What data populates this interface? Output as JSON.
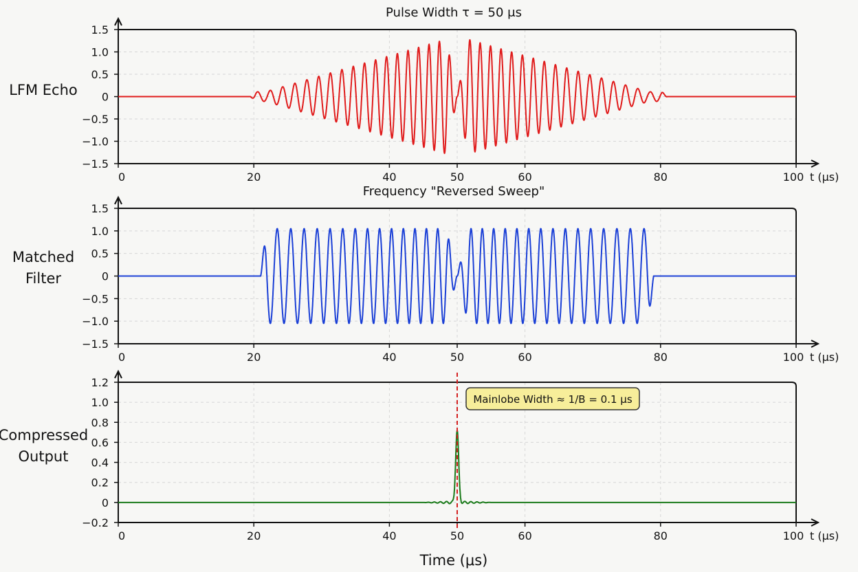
{
  "chart_data": [
    {
      "type": "line",
      "title": "Pulse Width τ = 50 μs",
      "ylabel": "LFM Echo",
      "xlabel_end": "t (μs)",
      "xlim": [
        0,
        100
      ],
      "ylim": [
        -1.5,
        1.5
      ],
      "yticks": [
        "1.5",
        "1.0",
        "0.5",
        "0",
        "-0.5",
        "-1.0",
        "-1.5"
      ],
      "xticks": [
        "0",
        "20",
        "40",
        "50",
        "60",
        "80",
        "100"
      ],
      "color": "#e01b1b",
      "signal": {
        "start": 19.5,
        "end": 81,
        "center": 50,
        "peak_amplitude": 1.35,
        "envelope": "triangular"
      }
    },
    {
      "type": "line",
      "title": "Frequency \"Reversed Sweep\"",
      "ylabel": [
        "Matched",
        "Filter"
      ],
      "xlabel_end": "t (μs)",
      "xlim": [
        0,
        100
      ],
      "ylim": [
        -1.5,
        1.5
      ],
      "yticks": [
        "1.5",
        "1.0",
        "0.5",
        "0",
        "-0.5",
        "-1.0",
        "-1.5"
      ],
      "xticks": [
        "0",
        "20",
        "40",
        "50",
        "60",
        "80",
        "100"
      ],
      "color": "#1a3fd6",
      "signal": {
        "start": 21,
        "end": 79,
        "center": 50,
        "peak_amplitude": 1.05,
        "envelope": "flat"
      }
    },
    {
      "type": "line",
      "ylabel": [
        "Compressed",
        "Output"
      ],
      "xlabel": "Time (μs)",
      "xlabel_end": "t (μs)",
      "xlim": [
        0,
        100
      ],
      "ylim": [
        -0.2,
        1.2
      ],
      "yticks": [
        "1.2",
        "1.0",
        "0.8",
        "0.6",
        "0.4",
        "0.2",
        "0",
        "-0.2"
      ],
      "xticks": [
        "0",
        "20",
        "40",
        "50",
        "60",
        "80",
        "100"
      ],
      "color": "#1a7a1a",
      "peak": {
        "x": 50,
        "y": 0.72
      },
      "marker_x": 50,
      "marker_color": "#d42020",
      "annotation": "Mainlobe Width ≈ 1/B = 0.1 μs",
      "annotation_fill": "#f7ee9a"
    }
  ]
}
